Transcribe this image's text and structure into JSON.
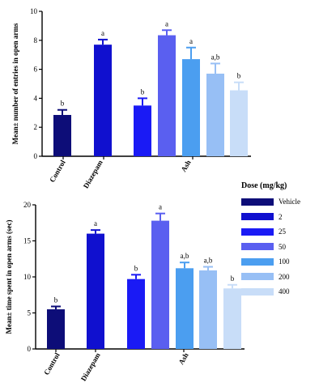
{
  "legend": {
    "title": "Dose (mg/kg)",
    "entries": [
      {
        "label": "Vehicle",
        "color": "#0d0d78"
      },
      {
        "label": "2",
        "color": "#1010cf"
      },
      {
        "label": "25",
        "color": "#1a1af5"
      },
      {
        "label": "50",
        "color": "#5a5ff0"
      },
      {
        "label": "100",
        "color": "#4b9ef0"
      },
      {
        "label": "200",
        "color": "#97bff5"
      },
      {
        "label": "400",
        "color": "#c8ddf8"
      }
    ]
  },
  "chart_data": [
    {
      "type": "bar",
      "ylabel": "Mean± number of entries in open arms",
      "ylim": [
        0,
        10
      ],
      "yticks": [
        0,
        2,
        4,
        6,
        8,
        10
      ],
      "group_labels": [
        "Control",
        "Diazepam",
        "Ash"
      ],
      "bars": [
        {
          "group": "Control",
          "dose": "Vehicle",
          "value": 2.85,
          "error": 0.35,
          "sig": "b"
        },
        {
          "group": "Diazepam",
          "dose": "2",
          "value": 7.7,
          "error": 0.35,
          "sig": "a"
        },
        {
          "group": "Ash",
          "dose": "25",
          "value": 3.5,
          "error": 0.5,
          "sig": "b"
        },
        {
          "group": "Ash",
          "dose": "50",
          "value": 8.35,
          "error": 0.35,
          "sig": "a"
        },
        {
          "group": "Ash",
          "dose": "100",
          "value": 6.7,
          "error": 0.8,
          "sig": "a"
        },
        {
          "group": "Ash",
          "dose": "200",
          "value": 5.7,
          "error": 0.7,
          "sig": "a,b"
        },
        {
          "group": "Ash",
          "dose": "400",
          "value": 4.55,
          "error": 0.55,
          "sig": "b"
        }
      ]
    },
    {
      "type": "bar",
      "ylabel": "Mean± time spent in open arms (sec)",
      "ylim": [
        0,
        20
      ],
      "yticks": [
        0,
        5,
        10,
        15,
        20
      ],
      "group_labels": [
        "Control",
        "Diazepam",
        "Ash"
      ],
      "bars": [
        {
          "group": "Control",
          "dose": "Vehicle",
          "value": 5.5,
          "error": 0.4,
          "sig": "b"
        },
        {
          "group": "Diazepam",
          "dose": "2",
          "value": 16.0,
          "error": 0.5,
          "sig": "a"
        },
        {
          "group": "Ash",
          "dose": "25",
          "value": 9.7,
          "error": 0.6,
          "sig": "b"
        },
        {
          "group": "Ash",
          "dose": "50",
          "value": 17.8,
          "error": 1.0,
          "sig": "a"
        },
        {
          "group": "Ash",
          "dose": "100",
          "value": 11.2,
          "error": 0.8,
          "sig": "a,b"
        },
        {
          "group": "Ash",
          "dose": "200",
          "value": 10.9,
          "error": 0.5,
          "sig": "a,b"
        },
        {
          "group": "Ash",
          "dose": "400",
          "value": 8.4,
          "error": 0.5,
          "sig": "b"
        }
      ]
    }
  ]
}
